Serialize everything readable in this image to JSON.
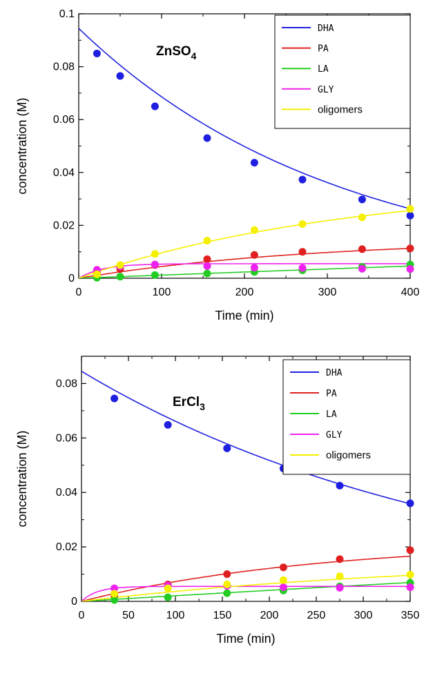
{
  "chart_data": [
    {
      "type": "scatter",
      "catalyst": {
        "base": "ZnSO",
        "sub": "4"
      },
      "xlabel": "Time (min)",
      "ylabel": "concentration (M)",
      "xlim": [
        0,
        400
      ],
      "ylim": [
        0,
        0.1
      ],
      "xticks": [
        0,
        100,
        200,
        300,
        400
      ],
      "yticks": [
        0,
        0.02,
        0.04,
        0.06,
        0.08,
        0.1
      ],
      "ytick_labels": [
        "0",
        "0.02",
        "0.04",
        "0.06",
        "0.08",
        "0.1"
      ],
      "legend_position": "top-right",
      "series": [
        {
          "name": "DHA",
          "color": "#1f1fe0",
          "x": [
            22,
            50,
            92,
            155,
            212,
            270,
            342,
            400
          ],
          "y": [
            0.085,
            0.0765,
            0.065,
            0.053,
            0.0437,
            0.0373,
            0.0298,
            0.0237
          ],
          "fit": {
            "a": 0.0945,
            "k": 0.0032,
            "b": 0
          }
        },
        {
          "name": "PA",
          "color": "#e02020",
          "x": [
            22,
            50,
            92,
            155,
            212,
            270,
            342,
            400
          ],
          "y": [
            0.002,
            0.0035,
            0.005,
            0.0072,
            0.0088,
            0.01,
            0.011,
            0.0113
          ],
          "fit": {
            "a": 0.015,
            "k": 0.0035,
            "b": 0
          }
        },
        {
          "name": "LA",
          "color": "#22cc22",
          "x": [
            22,
            50,
            92,
            155,
            212,
            270,
            342,
            400
          ],
          "y": [
            0.0002,
            0.0006,
            0.0012,
            0.0018,
            0.0024,
            0.003,
            0.0043,
            0.0052
          ],
          "fit": {
            "a": 0.06,
            "k": 0.0002,
            "b": 0
          }
        },
        {
          "name": "GLY",
          "color": "#ee22ee",
          "x": [
            22,
            50,
            92,
            155,
            212,
            270,
            342,
            400
          ],
          "y": [
            0.0032,
            0.0045,
            0.0052,
            0.0046,
            0.004,
            0.0039,
            0.0036,
            0.0035
          ],
          "fit": {
            "a": 0.0055,
            "k": 0.035,
            "b": 0.0018
          }
        },
        {
          "name": "oligomers",
          "color": "#f5f000",
          "x": [
            22,
            50,
            92,
            155,
            212,
            270,
            342,
            400
          ],
          "y": [
            0.0015,
            0.005,
            0.0092,
            0.0142,
            0.0182,
            0.0205,
            0.023,
            0.0262
          ],
          "fit": {
            "a": 0.036,
            "k": 0.0031,
            "b": 0
          }
        }
      ]
    },
    {
      "type": "scatter",
      "catalyst": {
        "base": "ErCl",
        "sub": "3"
      },
      "xlabel": "Time (min)",
      "ylabel": "concentration (M)",
      "xlim": [
        0,
        350
      ],
      "ylim": [
        0,
        0.09
      ],
      "xticks": [
        0,
        50,
        100,
        150,
        200,
        250,
        300,
        350
      ],
      "yticks": [
        0,
        0.02,
        0.04,
        0.06,
        0.08
      ],
      "ytick_labels": [
        "0",
        "0.02",
        "0.04",
        "0.06",
        "0.08"
      ],
      "legend_position": "top-right",
      "series": [
        {
          "name": "DHA",
          "color": "#1f1fe0",
          "x": [
            35,
            92,
            155,
            215,
            275,
            350
          ],
          "y": [
            0.0745,
            0.0648,
            0.0562,
            0.0488,
            0.0425,
            0.036
          ],
          "fit": {
            "a": 0.0845,
            "k": 0.00245,
            "b": 0
          }
        },
        {
          "name": "PA",
          "color": "#e02020",
          "x": [
            35,
            92,
            155,
            215,
            275,
            350
          ],
          "y": [
            0.0022,
            0.0062,
            0.01,
            0.0125,
            0.0155,
            0.0188
          ],
          "fit": {
            "a": 0.022,
            "k": 0.004,
            "b": 0
          }
        },
        {
          "name": "LA",
          "color": "#22cc22",
          "x": [
            35,
            92,
            155,
            215,
            275,
            350
          ],
          "y": [
            0.0005,
            0.0015,
            0.003,
            0.004,
            0.0055,
            0.0068
          ],
          "fit": {
            "a": 0.06,
            "k": 0.00035,
            "b": 0
          }
        },
        {
          "name": "GLY",
          "color": "#ee22ee",
          "x": [
            35,
            92,
            155,
            215,
            275,
            350
          ],
          "y": [
            0.0048,
            0.0058,
            0.0057,
            0.0052,
            0.005,
            0.0052
          ],
          "fit": {
            "a": 0.0055,
            "k": 0.06,
            "b": 0
          }
        },
        {
          "name": "oligomers",
          "color": "#f5f000",
          "x": [
            35,
            92,
            155,
            215,
            275,
            350
          ],
          "y": [
            0.0028,
            0.0048,
            0.0062,
            0.0078,
            0.0092,
            0.0098
          ],
          "fit": {
            "a": 0.016,
            "k": 0.0026,
            "b": 0
          }
        }
      ]
    }
  ]
}
